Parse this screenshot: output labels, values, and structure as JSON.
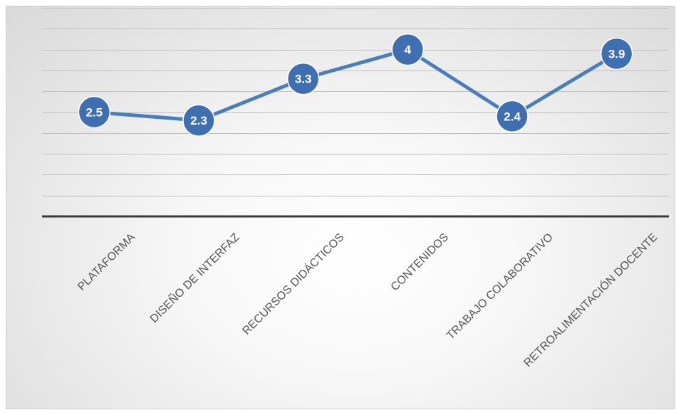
{
  "chart_data": {
    "type": "line",
    "categories": [
      "PLATAFORMA",
      "DISEÑO DE INTERFAZ",
      "RECURSOS DIDÁCTICOS",
      "CONTENIDOS",
      "TRABAJO COLABORATIVO",
      "RETROALIMENTACIÓN DOCENTE"
    ],
    "series": [
      {
        "values": [
          2.5,
          2.3,
          3.3,
          4,
          2.4,
          3.9
        ],
        "data_labels": [
          "2.5",
          "2.3",
          "3.3",
          "4",
          "2.4",
          "3.9"
        ]
      }
    ],
    "ylim": [
      0,
      5
    ],
    "grid": true,
    "colors": {
      "line": "#4a7ebb",
      "marker_fill": "#3f6fb0",
      "marker_stroke": "#ffffff",
      "data_label": "#ffffff",
      "gridline": "#bfbfbf",
      "axis": "#3a3a3a",
      "tick_label": "#555555"
    }
  }
}
